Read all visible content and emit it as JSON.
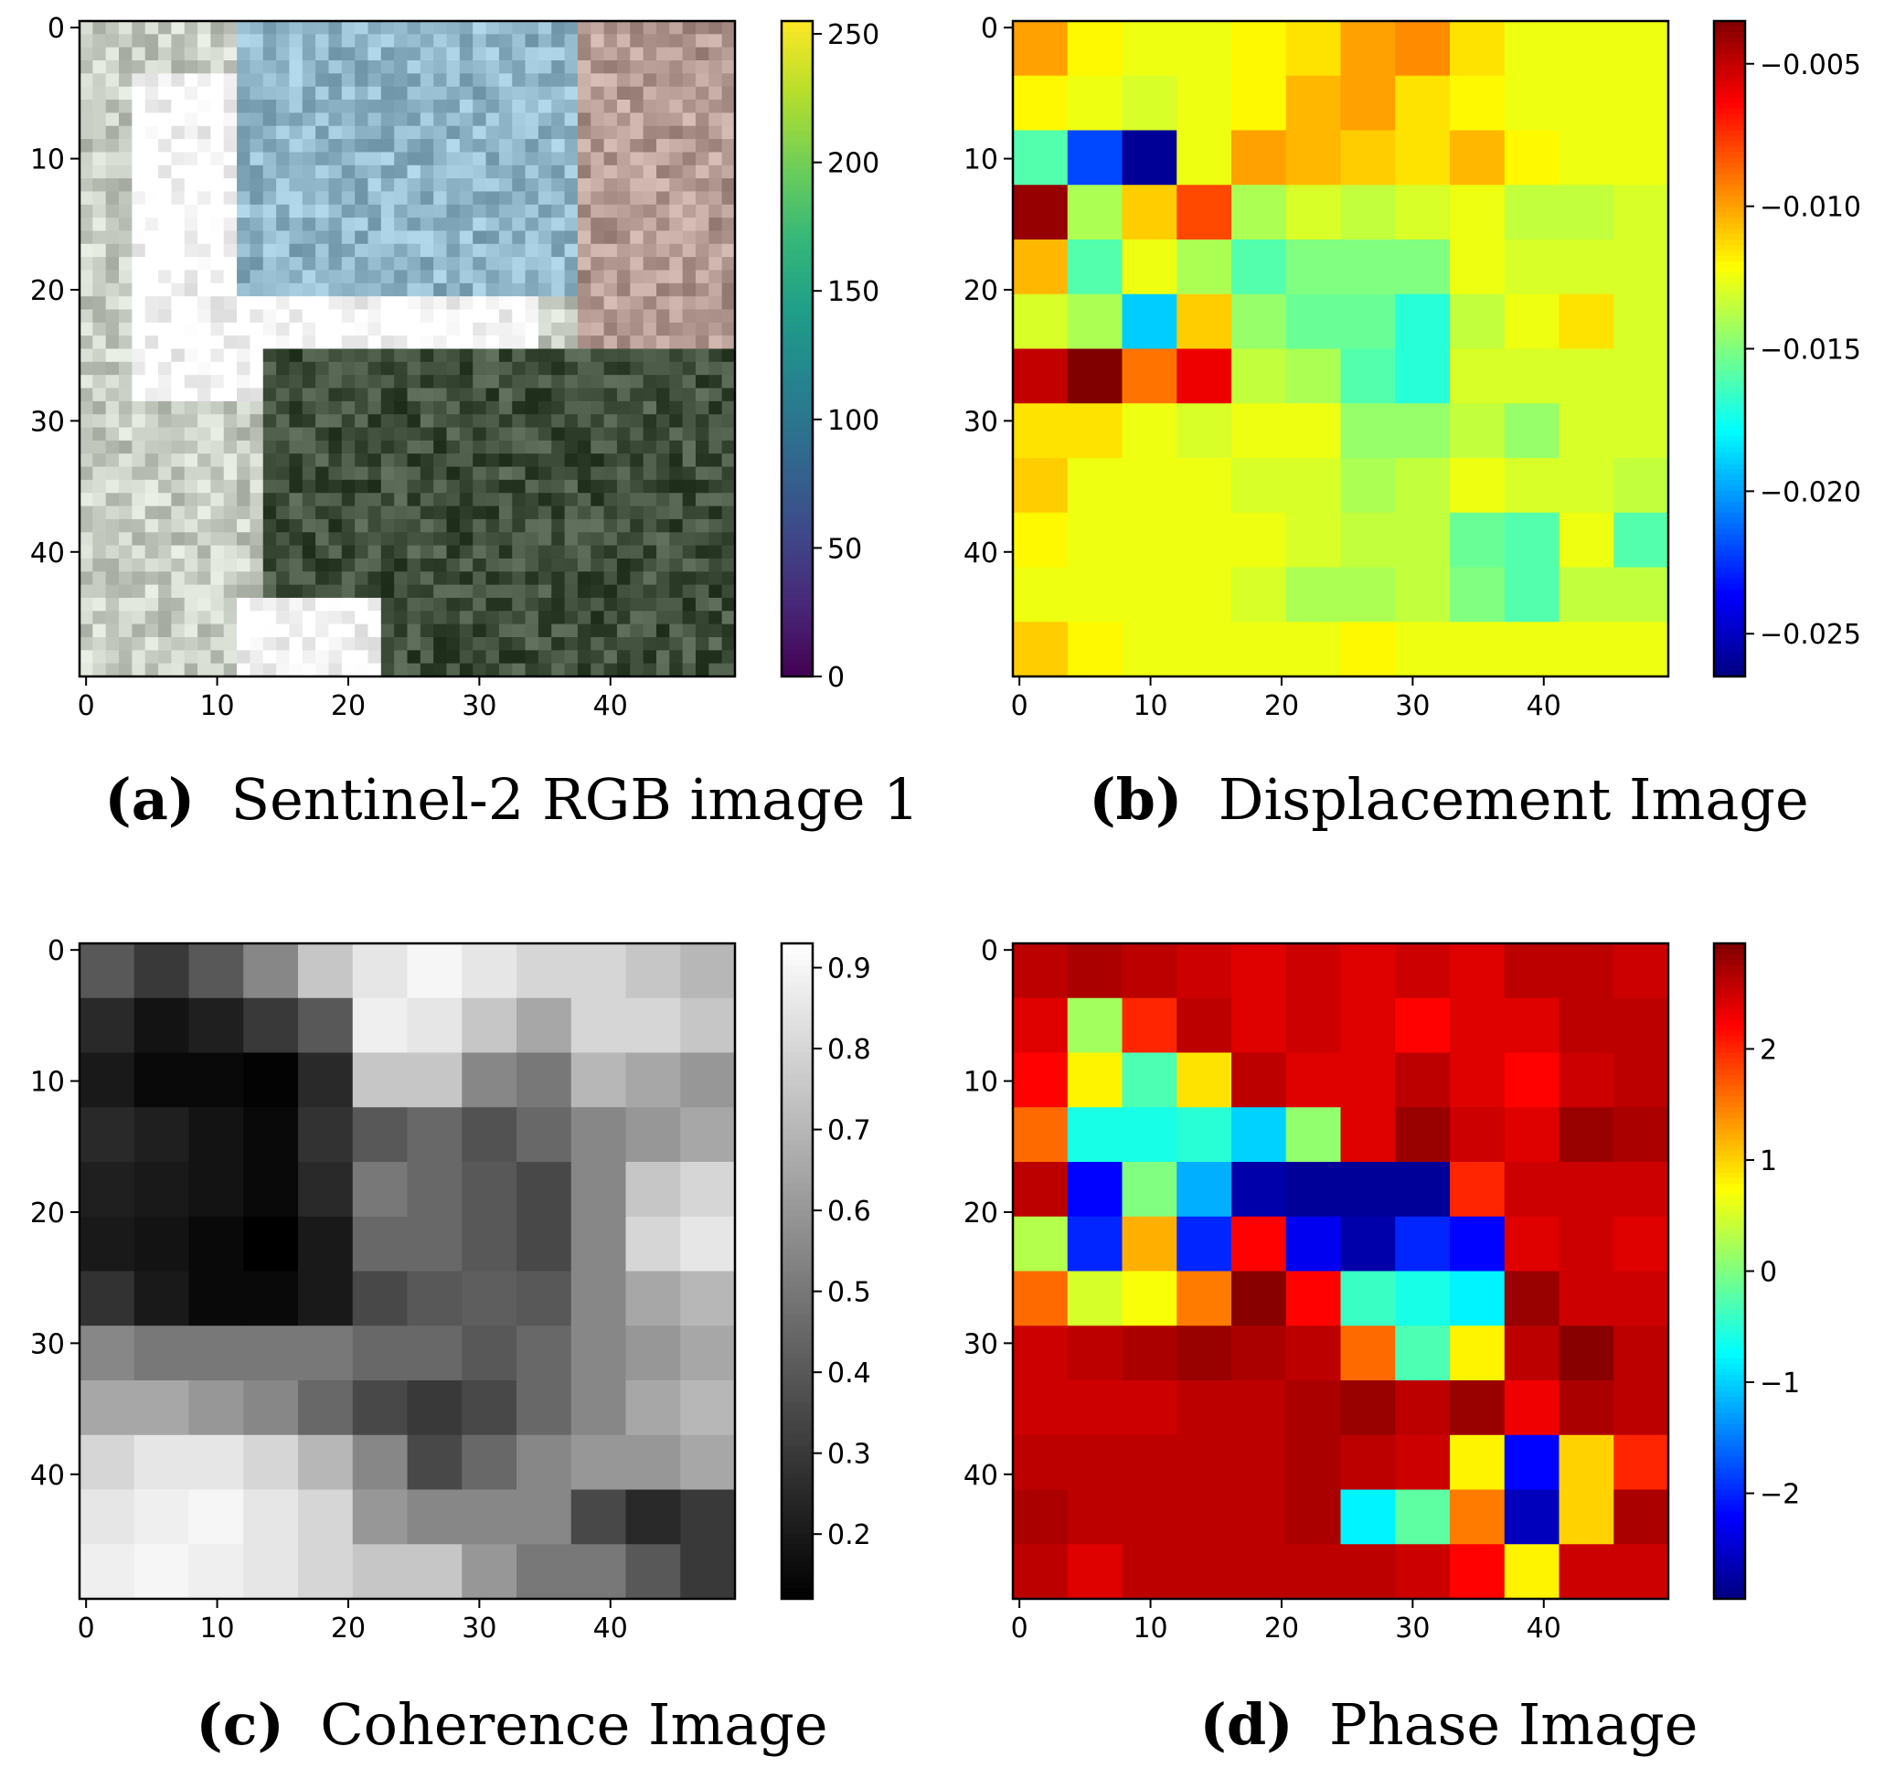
{
  "figure": {
    "captions": [
      {
        "label": "(a)",
        "text": "Sentinel-2 RGB image 1"
      },
      {
        "label": "(b)",
        "text": "Displacement Image"
      },
      {
        "label": "(c)",
        "text": "Coherence Image"
      },
      {
        "label": "(d)",
        "text": "Phase Image"
      }
    ]
  },
  "chart_data": [
    {
      "type": "heatmap",
      "title": "Sentinel-2 RGB image 1",
      "image_kind": "rgb",
      "xlim": [
        0,
        49
      ],
      "ylim": [
        49,
        0
      ],
      "x_ticks": [
        0,
        10,
        20,
        30,
        40
      ],
      "y_ticks": [
        0,
        10,
        20,
        30,
        40
      ],
      "colorbar": {
        "colormap": "viridis",
        "range": [
          0,
          255
        ],
        "ticks": [
          "0",
          "50",
          "100",
          "150",
          "200",
          "250"
        ],
        "tick_values": [
          0,
          50,
          100,
          150,
          200,
          250
        ]
      },
      "regions": [
        {
          "description": "saturated white cloud / bright area",
          "rows": [
            4,
            28
          ],
          "cols": [
            4,
            34
          ],
          "color": "#ffffff"
        },
        {
          "description": "blue-grey urban area",
          "rows": [
            0,
            20
          ],
          "cols": [
            12,
            38
          ],
          "color": "#8fb7c9"
        },
        {
          "description": "pinkish-brown textured area",
          "rows": [
            0,
            35
          ],
          "cols": [
            38,
            49
          ],
          "color": "#b49a92"
        },
        {
          "description": "dark green vegetated valley",
          "rows": [
            25,
            49
          ],
          "cols": [
            14,
            49
          ],
          "color": "#3f4f3c"
        },
        {
          "description": "bright white patch",
          "rows": [
            44,
            49
          ],
          "cols": [
            12,
            22
          ],
          "color": "#ffffff"
        }
      ]
    },
    {
      "type": "heatmap",
      "title": "Displacement Image",
      "colormap": "jet",
      "xlim": [
        0,
        49
      ],
      "ylim": [
        49,
        0
      ],
      "x_ticks": [
        0,
        10,
        20,
        30,
        40
      ],
      "y_ticks": [
        0,
        10,
        20,
        30,
        40
      ],
      "colorbar": {
        "colormap": "jet",
        "range": [
          -0.0265,
          -0.0035
        ],
        "ticks": [
          "−0.005",
          "−0.010",
          "−0.015",
          "−0.020",
          "−0.025"
        ],
        "tick_values": [
          -0.005,
          -0.01,
          -0.015,
          -0.02,
          -0.025
        ]
      },
      "values": [
        [
          -0.01,
          -0.012,
          -0.0125,
          -0.0125,
          -0.012,
          -0.0115,
          -0.01,
          -0.0095,
          -0.0115,
          -0.0125,
          -0.0125,
          -0.0125
        ],
        [
          -0.012,
          -0.0125,
          -0.013,
          -0.0125,
          -0.012,
          -0.0105,
          -0.01,
          -0.0115,
          -0.012,
          -0.0125,
          -0.0125,
          -0.0125
        ],
        [
          -0.016,
          -0.022,
          -0.026,
          -0.0125,
          -0.01,
          -0.0105,
          -0.011,
          -0.0115,
          -0.0105,
          -0.012,
          -0.0125,
          -0.0125
        ],
        [
          -0.004,
          -0.014,
          -0.011,
          -0.008,
          -0.014,
          -0.013,
          -0.0135,
          -0.013,
          -0.0125,
          -0.0135,
          -0.0135,
          -0.013
        ],
        [
          -0.0105,
          -0.016,
          -0.0125,
          -0.014,
          -0.016,
          -0.015,
          -0.015,
          -0.015,
          -0.0125,
          -0.013,
          -0.013,
          -0.013
        ],
        [
          -0.013,
          -0.014,
          -0.019,
          -0.011,
          -0.0145,
          -0.0155,
          -0.0155,
          -0.017,
          -0.0135,
          -0.0125,
          -0.0115,
          -0.013
        ],
        [
          -0.005,
          -0.0035,
          -0.009,
          -0.006,
          -0.0135,
          -0.014,
          -0.016,
          -0.017,
          -0.013,
          -0.013,
          -0.013,
          -0.013
        ],
        [
          -0.0115,
          -0.0115,
          -0.0125,
          -0.013,
          -0.0125,
          -0.0125,
          -0.0145,
          -0.0145,
          -0.0135,
          -0.0145,
          -0.013,
          -0.013
        ],
        [
          -0.011,
          -0.0125,
          -0.0125,
          -0.0125,
          -0.013,
          -0.013,
          -0.014,
          -0.0135,
          -0.0125,
          -0.013,
          -0.013,
          -0.0135
        ],
        [
          -0.012,
          -0.0125,
          -0.0125,
          -0.0125,
          -0.0125,
          -0.013,
          -0.0135,
          -0.0135,
          -0.0155,
          -0.016,
          -0.0125,
          -0.016
        ],
        [
          -0.0125,
          -0.0125,
          -0.0125,
          -0.0125,
          -0.013,
          -0.014,
          -0.014,
          -0.0135,
          -0.015,
          -0.016,
          -0.0135,
          -0.0135
        ],
        [
          -0.011,
          -0.012,
          -0.0125,
          -0.0125,
          -0.0125,
          -0.0125,
          -0.012,
          -0.0125,
          -0.0125,
          -0.0125,
          -0.0125,
          -0.0125
        ]
      ]
    },
    {
      "type": "heatmap",
      "title": "Coherence Image",
      "colormap": "gray",
      "xlim": [
        0,
        49
      ],
      "ylim": [
        49,
        0
      ],
      "x_ticks": [
        0,
        10,
        20,
        30,
        40
      ],
      "y_ticks": [
        0,
        10,
        20,
        30,
        40
      ],
      "colorbar": {
        "colormap": "gray",
        "range": [
          0.12,
          0.93
        ],
        "ticks": [
          "0.9",
          "0.8",
          "0.7",
          "0.6",
          "0.5",
          "0.4",
          "0.3",
          "0.2"
        ],
        "tick_values": [
          0.9,
          0.8,
          0.7,
          0.6,
          0.5,
          0.4,
          0.3,
          0.2
        ]
      },
      "values": [
        [
          0.4,
          0.3,
          0.4,
          0.55,
          0.75,
          0.85,
          0.9,
          0.85,
          0.8,
          0.8,
          0.75,
          0.7
        ],
        [
          0.25,
          0.18,
          0.22,
          0.3,
          0.4,
          0.88,
          0.85,
          0.75,
          0.65,
          0.8,
          0.8,
          0.75
        ],
        [
          0.2,
          0.15,
          0.15,
          0.13,
          0.25,
          0.75,
          0.75,
          0.55,
          0.5,
          0.7,
          0.65,
          0.6
        ],
        [
          0.25,
          0.22,
          0.18,
          0.15,
          0.28,
          0.4,
          0.45,
          0.38,
          0.45,
          0.55,
          0.6,
          0.65
        ],
        [
          0.22,
          0.2,
          0.18,
          0.15,
          0.25,
          0.5,
          0.45,
          0.4,
          0.35,
          0.55,
          0.75,
          0.8
        ],
        [
          0.2,
          0.18,
          0.15,
          0.12,
          0.2,
          0.45,
          0.45,
          0.4,
          0.35,
          0.55,
          0.8,
          0.85
        ],
        [
          0.28,
          0.2,
          0.15,
          0.15,
          0.2,
          0.35,
          0.4,
          0.42,
          0.4,
          0.55,
          0.65,
          0.7
        ],
        [
          0.55,
          0.5,
          0.5,
          0.5,
          0.5,
          0.45,
          0.45,
          0.4,
          0.45,
          0.55,
          0.6,
          0.65
        ],
        [
          0.65,
          0.65,
          0.6,
          0.55,
          0.45,
          0.35,
          0.3,
          0.35,
          0.45,
          0.55,
          0.65,
          0.7
        ],
        [
          0.8,
          0.85,
          0.85,
          0.8,
          0.7,
          0.55,
          0.35,
          0.45,
          0.55,
          0.6,
          0.6,
          0.65
        ],
        [
          0.85,
          0.88,
          0.9,
          0.85,
          0.8,
          0.6,
          0.55,
          0.55,
          0.55,
          0.35,
          0.25,
          0.3
        ],
        [
          0.88,
          0.9,
          0.88,
          0.85,
          0.8,
          0.75,
          0.75,
          0.6,
          0.5,
          0.5,
          0.4,
          0.3
        ]
      ]
    },
    {
      "type": "heatmap",
      "title": "Phase Image",
      "colormap": "jet",
      "xlim": [
        0,
        49
      ],
      "ylim": [
        49,
        0
      ],
      "x_ticks": [
        0,
        10,
        20,
        30,
        40
      ],
      "y_ticks": [
        0,
        10,
        20,
        30,
        40
      ],
      "colorbar": {
        "colormap": "jet",
        "range": [
          -2.95,
          2.95
        ],
        "ticks": [
          "2",
          "1",
          "0",
          "−1",
          "−2"
        ],
        "tick_values": [
          2,
          1,
          0,
          -1,
          -2
        ]
      },
      "values": [
        [
          2.6,
          2.7,
          2.6,
          2.5,
          2.4,
          2.5,
          2.4,
          2.5,
          2.4,
          2.6,
          2.6,
          2.5
        ],
        [
          2.4,
          0.2,
          2.0,
          2.6,
          2.4,
          2.5,
          2.4,
          2.2,
          2.4,
          2.4,
          2.6,
          2.6
        ],
        [
          2.2,
          0.8,
          -0.3,
          0.9,
          2.6,
          2.4,
          2.4,
          2.6,
          2.4,
          2.2,
          2.5,
          2.6
        ],
        [
          1.6,
          -0.6,
          -0.6,
          -0.5,
          -1.0,
          0.1,
          2.4,
          2.8,
          2.5,
          2.4,
          2.8,
          2.7
        ],
        [
          2.6,
          -2.2,
          0.0,
          -1.2,
          -2.7,
          -2.8,
          -2.8,
          -2.8,
          2.0,
          2.5,
          2.5,
          2.5
        ],
        [
          0.3,
          -2.0,
          1.2,
          -2.0,
          2.2,
          -2.3,
          -2.7,
          -2.0,
          -2.2,
          2.4,
          2.5,
          2.4
        ],
        [
          1.6,
          0.5,
          0.7,
          1.5,
          2.9,
          2.2,
          -0.4,
          -0.6,
          -0.8,
          2.8,
          2.5,
          2.5
        ],
        [
          2.5,
          2.6,
          2.7,
          2.8,
          2.7,
          2.6,
          1.6,
          -0.3,
          0.8,
          2.6,
          2.9,
          2.6
        ],
        [
          2.5,
          2.5,
          2.5,
          2.6,
          2.6,
          2.7,
          2.8,
          2.6,
          2.8,
          2.3,
          2.7,
          2.6
        ],
        [
          2.6,
          2.6,
          2.6,
          2.6,
          2.6,
          2.7,
          2.6,
          2.5,
          0.8,
          -2.2,
          1.0,
          2.0
        ],
        [
          2.7,
          2.6,
          2.6,
          2.6,
          2.6,
          2.7,
          -0.8,
          -0.2,
          1.5,
          -2.6,
          1.0,
          2.7
        ],
        [
          2.6,
          2.4,
          2.6,
          2.6,
          2.6,
          2.6,
          2.6,
          2.5,
          2.2,
          0.8,
          2.5,
          2.5
        ]
      ]
    }
  ]
}
